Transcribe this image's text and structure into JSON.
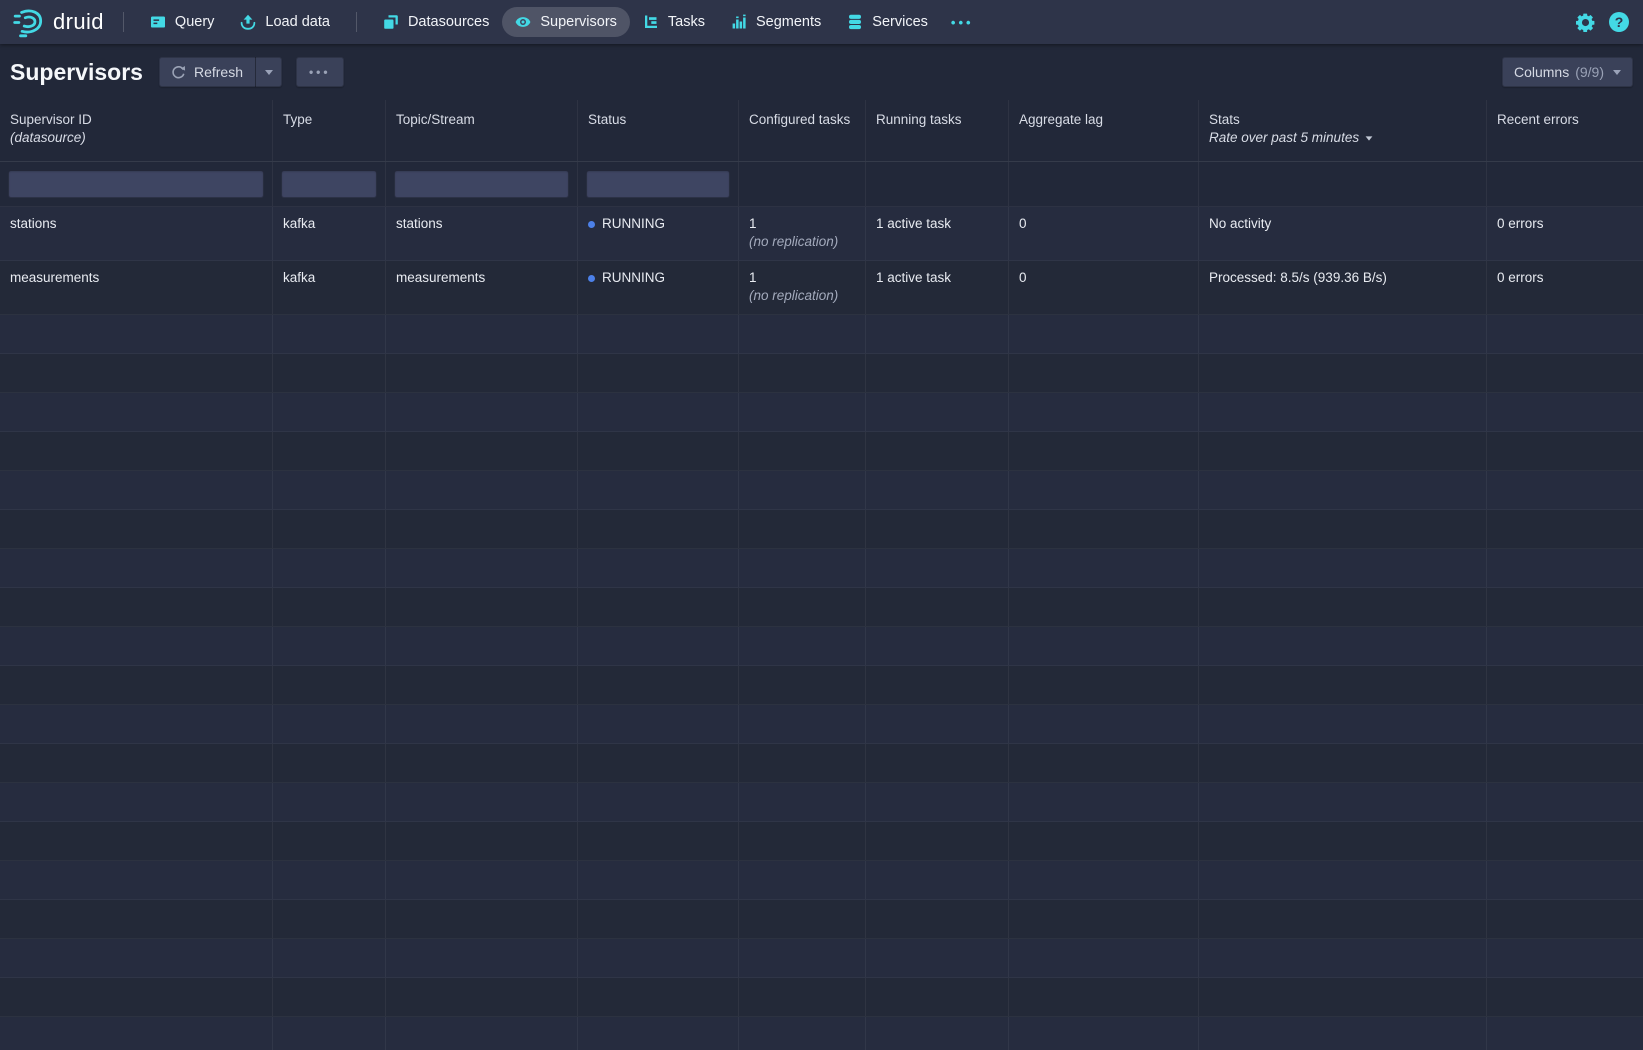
{
  "colors": {
    "accent_cyan": "#43d9e5",
    "status_running_dot": "#4c80e8",
    "nav_background": "#2e3449",
    "page_background": "#222839"
  },
  "nav": {
    "brand": "druid",
    "items": [
      {
        "label": "Query",
        "icon": "query-icon",
        "active": false
      },
      {
        "label": "Load data",
        "icon": "load-data-icon",
        "active": false
      },
      {
        "label": "Datasources",
        "icon": "datasources-icon",
        "active": false
      },
      {
        "label": "Supervisors",
        "icon": "eye-icon",
        "active": true
      },
      {
        "label": "Tasks",
        "icon": "gantt-icon",
        "active": false
      },
      {
        "label": "Segments",
        "icon": "bar-chart-icon",
        "active": false
      },
      {
        "label": "Services",
        "icon": "database-icon",
        "active": false
      }
    ],
    "more": "•••",
    "help": "?"
  },
  "header": {
    "title": "Supervisors",
    "refresh_label": "Refresh",
    "more_dots": "•••",
    "columns_label": "Columns",
    "columns_count": "(9/9)"
  },
  "table": {
    "columns": [
      {
        "label": "Supervisor ID",
        "sublabel": "(datasource)",
        "filterable": true
      },
      {
        "label": "Type",
        "filterable": true
      },
      {
        "label": "Topic/Stream",
        "filterable": true
      },
      {
        "label": "Status",
        "filterable": true
      },
      {
        "label": "Configured tasks",
        "filterable": false
      },
      {
        "label": "Running tasks",
        "filterable": false
      },
      {
        "label": "Aggregate lag",
        "filterable": false
      },
      {
        "label": "Stats",
        "sublabel": "Rate over past 5 minutes",
        "filterable": false
      },
      {
        "label": "Recent errors",
        "filterable": false
      }
    ],
    "rows": [
      {
        "supervisor_id": "stations",
        "type": "kafka",
        "topic_stream": "stations",
        "status": "RUNNING",
        "configured_tasks": "1",
        "configured_tasks_note": "(no replication)",
        "running_tasks": "1 active task",
        "aggregate_lag": "0",
        "stats": "No activity",
        "recent_errors": "0 errors"
      },
      {
        "supervisor_id": "measurements",
        "type": "kafka",
        "topic_stream": "measurements",
        "status": "RUNNING",
        "configured_tasks": "1",
        "configured_tasks_note": "(no replication)",
        "running_tasks": "1 active task",
        "aggregate_lag": "0",
        "stats": "Processed: 8.5/s (939.36 B/s)",
        "recent_errors": "0 errors"
      }
    ],
    "empty_row_count": 19
  }
}
